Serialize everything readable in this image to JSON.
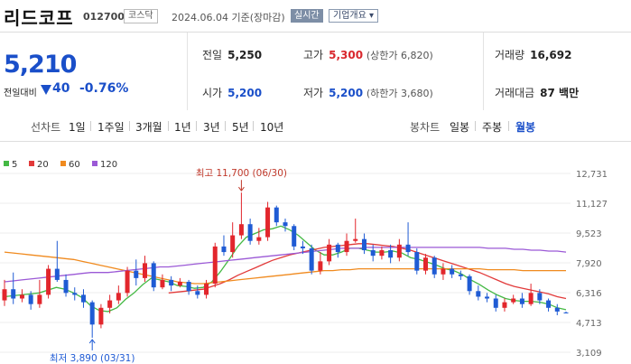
{
  "header": {
    "stock_name": "리드코프",
    "stock_code": "012700",
    "market": "코스닥",
    "date_text": "2024.06.04  기준(장마감)",
    "realtime_label": "실시간",
    "company_label": "기업개요 ▾"
  },
  "price": {
    "current": "5,210",
    "change_label": "전일대비",
    "change": "40",
    "change_pct": "-0.76%"
  },
  "quote": {
    "prev_label": "전일",
    "prev": "5,250",
    "open_label": "시가",
    "open": "5,200",
    "high_label": "고가",
    "high": "5,300",
    "upper_limit": "(상한가 6,820)",
    "low_label": "저가",
    "low": "5,200",
    "lower_limit": "(하한가 3,680)",
    "volume_label": "거래량",
    "volume": "16,692",
    "amount_label": "거래대금",
    "amount": "87 백만"
  },
  "periods": {
    "line_label": "선차트",
    "line_items": [
      "1일",
      "1주일",
      "3개월",
      "1년",
      "3년",
      "5년",
      "10년"
    ],
    "candle_label": "봉차트",
    "candle_items": [
      "일봉",
      "주봉",
      "월봉"
    ],
    "active_candle": "월봉"
  },
  "chart_data": {
    "type": "candlestick",
    "legend": [
      {
        "name": "5",
        "color": "#44b944"
      },
      {
        "name": "20",
        "color": "#e23a3a"
      },
      {
        "name": "60",
        "color": "#f08a1e"
      },
      {
        "name": "120",
        "color": "#9b59d6"
      }
    ],
    "y_ticks": [
      12731,
      11127,
      9523,
      7920,
      6316,
      4713,
      3109
    ],
    "ylim": [
      3109,
      12731
    ],
    "max_annotation": "최고 11,700 (06/30)",
    "min_annotation": "최저 3,890 (03/31)",
    "candles": [
      {
        "o": 5900,
        "c": 6500,
        "h": 7000,
        "l": 5600
      },
      {
        "o": 6500,
        "c": 6000,
        "h": 7400,
        "l": 5700
      },
      {
        "o": 6000,
        "c": 6200,
        "h": 6500,
        "l": 5800
      },
      {
        "o": 6200,
        "c": 5700,
        "h": 6400,
        "l": 5400
      },
      {
        "o": 5700,
        "c": 6200,
        "h": 7000,
        "l": 5500
      },
      {
        "o": 6200,
        "c": 7600,
        "h": 7800,
        "l": 6000
      },
      {
        "o": 7600,
        "c": 7000,
        "h": 9100,
        "l": 6900
      },
      {
        "o": 7000,
        "c": 6300,
        "h": 7300,
        "l": 6100
      },
      {
        "o": 6300,
        "c": 6200,
        "h": 6600,
        "l": 5900
      },
      {
        "o": 6200,
        "c": 5800,
        "h": 6500,
        "l": 5500
      },
      {
        "o": 5800,
        "c": 4600,
        "h": 5900,
        "l": 3890
      },
      {
        "o": 4600,
        "c": 5500,
        "h": 5700,
        "l": 4400
      },
      {
        "o": 5500,
        "c": 5900,
        "h": 6200,
        "l": 5200
      },
      {
        "o": 5900,
        "c": 6300,
        "h": 6700,
        "l": 5700
      },
      {
        "o": 6300,
        "c": 7500,
        "h": 7700,
        "l": 6100
      },
      {
        "o": 7500,
        "c": 7100,
        "h": 8100,
        "l": 6700
      },
      {
        "o": 7100,
        "c": 7900,
        "h": 8300,
        "l": 6900
      },
      {
        "o": 7900,
        "c": 6600,
        "h": 8000,
        "l": 6400
      },
      {
        "o": 6600,
        "c": 7000,
        "h": 7300,
        "l": 6500
      },
      {
        "o": 7000,
        "c": 6700,
        "h": 7200,
        "l": 6400
      },
      {
        "o": 6700,
        "c": 6900,
        "h": 7100,
        "l": 6600
      },
      {
        "o": 6900,
        "c": 6400,
        "h": 7000,
        "l": 6200
      },
      {
        "o": 6400,
        "c": 6200,
        "h": 6700,
        "l": 6000
      },
      {
        "o": 6200,
        "c": 6800,
        "h": 7000,
        "l": 6000
      },
      {
        "o": 6800,
        "c": 8800,
        "h": 9000,
        "l": 6600
      },
      {
        "o": 8800,
        "c": 8500,
        "h": 9400,
        "l": 8300
      },
      {
        "o": 8500,
        "c": 9400,
        "h": 10100,
        "l": 8200
      },
      {
        "o": 9400,
        "c": 10000,
        "h": 11700,
        "l": 9200
      },
      {
        "o": 10000,
        "c": 9100,
        "h": 10300,
        "l": 8900
      },
      {
        "o": 9100,
        "c": 9300,
        "h": 9800,
        "l": 8900
      },
      {
        "o": 9300,
        "c": 10900,
        "h": 11200,
        "l": 9100
      },
      {
        "o": 10900,
        "c": 10100,
        "h": 11000,
        "l": 9900
      },
      {
        "o": 10100,
        "c": 9900,
        "h": 10300,
        "l": 9600
      },
      {
        "o": 9900,
        "c": 8800,
        "h": 10000,
        "l": 8600
      },
      {
        "o": 8800,
        "c": 8700,
        "h": 9100,
        "l": 8400
      },
      {
        "o": 8700,
        "c": 7500,
        "h": 8900,
        "l": 7300
      },
      {
        "o": 7500,
        "c": 8000,
        "h": 8500,
        "l": 7300
      },
      {
        "o": 8000,
        "c": 8900,
        "h": 9200,
        "l": 7800
      },
      {
        "o": 8900,
        "c": 8500,
        "h": 9000,
        "l": 8200
      },
      {
        "o": 8500,
        "c": 9100,
        "h": 9500,
        "l": 8300
      },
      {
        "o": 9100,
        "c": 9200,
        "h": 10300,
        "l": 9000
      },
      {
        "o": 9200,
        "c": 8600,
        "h": 9500,
        "l": 8400
      },
      {
        "o": 8600,
        "c": 8300,
        "h": 8900,
        "l": 8000
      },
      {
        "o": 8300,
        "c": 8600,
        "h": 8800,
        "l": 8100
      },
      {
        "o": 8600,
        "c": 8200,
        "h": 8900,
        "l": 7900
      },
      {
        "o": 8200,
        "c": 8900,
        "h": 9200,
        "l": 8000
      },
      {
        "o": 8900,
        "c": 8500,
        "h": 10100,
        "l": 8300
      },
      {
        "o": 8500,
        "c": 7500,
        "h": 8700,
        "l": 7300
      },
      {
        "o": 7500,
        "c": 8200,
        "h": 8400,
        "l": 7300
      },
      {
        "o": 8200,
        "c": 7300,
        "h": 8300,
        "l": 7100
      },
      {
        "o": 7300,
        "c": 7600,
        "h": 7900,
        "l": 7000
      },
      {
        "o": 7600,
        "c": 7300,
        "h": 7800,
        "l": 7100
      },
      {
        "o": 7300,
        "c": 7200,
        "h": 7500,
        "l": 7000
      },
      {
        "o": 7200,
        "c": 6400,
        "h": 7300,
        "l": 6200
      },
      {
        "o": 6400,
        "c": 6100,
        "h": 6700,
        "l": 5900
      },
      {
        "o": 6100,
        "c": 6000,
        "h": 6300,
        "l": 5800
      },
      {
        "o": 6000,
        "c": 5500,
        "h": 6200,
        "l": 5300
      },
      {
        "o": 5500,
        "c": 5800,
        "h": 6000,
        "l": 5300
      },
      {
        "o": 5800,
        "c": 6000,
        "h": 6200,
        "l": 5700
      },
      {
        "o": 6000,
        "c": 5700,
        "h": 6300,
        "l": 5500
      },
      {
        "o": 5700,
        "c": 6300,
        "h": 6800,
        "l": 5600
      },
      {
        "o": 6300,
        "c": 5900,
        "h": 6500,
        "l": 5700
      },
      {
        "o": 5900,
        "c": 5500,
        "h": 6000,
        "l": 5300
      },
      {
        "o": 5500,
        "c": 5300,
        "h": 5700,
        "l": 5100
      },
      {
        "o": 5250,
        "c": 5210,
        "h": 5300,
        "l": 5200
      }
    ],
    "ma": {
      "5": [
        6100,
        6150,
        6200,
        6250,
        6300,
        6450,
        6600,
        6500,
        6300,
        6050,
        5600,
        5350,
        5300,
        5500,
        5950,
        6300,
        6750,
        7100,
        7000,
        6900,
        6700,
        6650,
        6550,
        6600,
        6900,
        7450,
        8100,
        8800,
        9300,
        9500,
        9700,
        9750,
        9900,
        9700,
        9400,
        9000,
        8600,
        8350,
        8350,
        8500,
        8700,
        8700,
        8600,
        8500,
        8500,
        8550,
        8450,
        8200,
        8100,
        7950,
        7800,
        7600,
        7500,
        7300,
        7000,
        6750,
        6450,
        6200,
        6000,
        5900,
        5850,
        5850,
        5800,
        5700,
        5500,
        5400
      ],
      "20": [
        null,
        null,
        null,
        null,
        null,
        null,
        null,
        null,
        null,
        null,
        null,
        null,
        null,
        null,
        null,
        null,
        null,
        null,
        null,
        6300,
        6350,
        6400,
        6450,
        6500,
        6650,
        6800,
        7000,
        7250,
        7450,
        7650,
        7850,
        8050,
        8200,
        8350,
        8450,
        8550,
        8650,
        8750,
        8800,
        8850,
        8900,
        8950,
        8950,
        8900,
        8850,
        8800,
        8700,
        8600,
        8450,
        8300,
        8150,
        8000,
        7850,
        7700,
        7550,
        7400,
        7200,
        7000,
        6800,
        6650,
        6550,
        6450,
        6350,
        6250,
        6100,
        6000
      ],
      "60": [
        8500,
        8450,
        8400,
        8350,
        8300,
        8250,
        8200,
        8150,
        8100,
        8000,
        7900,
        7800,
        7700,
        7600,
        7500,
        7400,
        7300,
        7200,
        7100,
        7000,
        6900,
        6850,
        6800,
        6800,
        6850,
        6900,
        6950,
        7000,
        7050,
        7100,
        7150,
        7200,
        7250,
        7300,
        7350,
        7400,
        7450,
        7500,
        7500,
        7550,
        7550,
        7600,
        7600,
        7600,
        7600,
        7600,
        7600,
        7600,
        7600,
        7600,
        7600,
        7600,
        7600,
        7600,
        7600,
        7600,
        7550,
        7550,
        7550,
        7550,
        7500,
        7500,
        7500,
        7500,
        7500,
        7500
      ],
      "120": [
        6900,
        6950,
        7000,
        7050,
        7100,
        7150,
        7200,
        7250,
        7300,
        7350,
        7400,
        7400,
        7400,
        7450,
        7500,
        7550,
        7600,
        7650,
        7700,
        7700,
        7750,
        7800,
        7850,
        7900,
        7950,
        8000,
        8050,
        8100,
        8150,
        8200,
        8250,
        8300,
        8350,
        8400,
        8450,
        8500,
        8550,
        8600,
        8650,
        8700,
        8700,
        8700,
        8750,
        8750,
        8750,
        8750,
        8750,
        8750,
        8750,
        8750,
        8750,
        8750,
        8750,
        8750,
        8750,
        8750,
        8700,
        8700,
        8700,
        8650,
        8650,
        8600,
        8600,
        8550,
        8550,
        8500
      ]
    }
  }
}
